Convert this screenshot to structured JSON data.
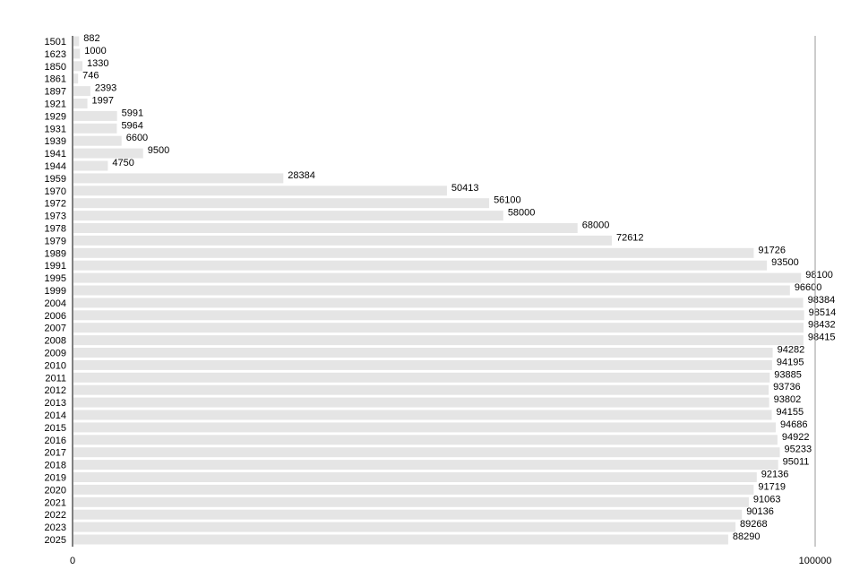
{
  "chart_data": {
    "type": "bar",
    "orientation": "horizontal",
    "categories": [
      "1501",
      "1623",
      "1850",
      "1861",
      "1897",
      "1921",
      "1929",
      "1931",
      "1939",
      "1941",
      "1944",
      "1959",
      "1970",
      "1972",
      "1973",
      "1978",
      "1979",
      "1989",
      "1991",
      "1995",
      "1999",
      "2004",
      "2006",
      "2007",
      "2008",
      "2009",
      "2010",
      "2011",
      "2012",
      "2013",
      "2014",
      "2015",
      "2016",
      "2017",
      "2018",
      "2019",
      "2020",
      "2021",
      "2022",
      "2023",
      "2025"
    ],
    "values": [
      882,
      1000,
      1330,
      746,
      2393,
      1997,
      5991,
      5964,
      6600,
      9500,
      4750,
      28384,
      50413,
      56100,
      58000,
      68000,
      72612,
      91726,
      93500,
      98100,
      96600,
      98384,
      98514,
      98432,
      98415,
      94282,
      94195,
      93885,
      93736,
      93802,
      94155,
      94686,
      94922,
      95233,
      95011,
      92136,
      91719,
      91063,
      90136,
      89268,
      88290
    ],
    "xlim": [
      0,
      100000
    ],
    "xticks": [
      "0",
      "100000"
    ],
    "title": "",
    "xlabel": "",
    "ylabel": "",
    "grid": false,
    "data_labels": true,
    "bar_color": "#e5e5e5"
  }
}
